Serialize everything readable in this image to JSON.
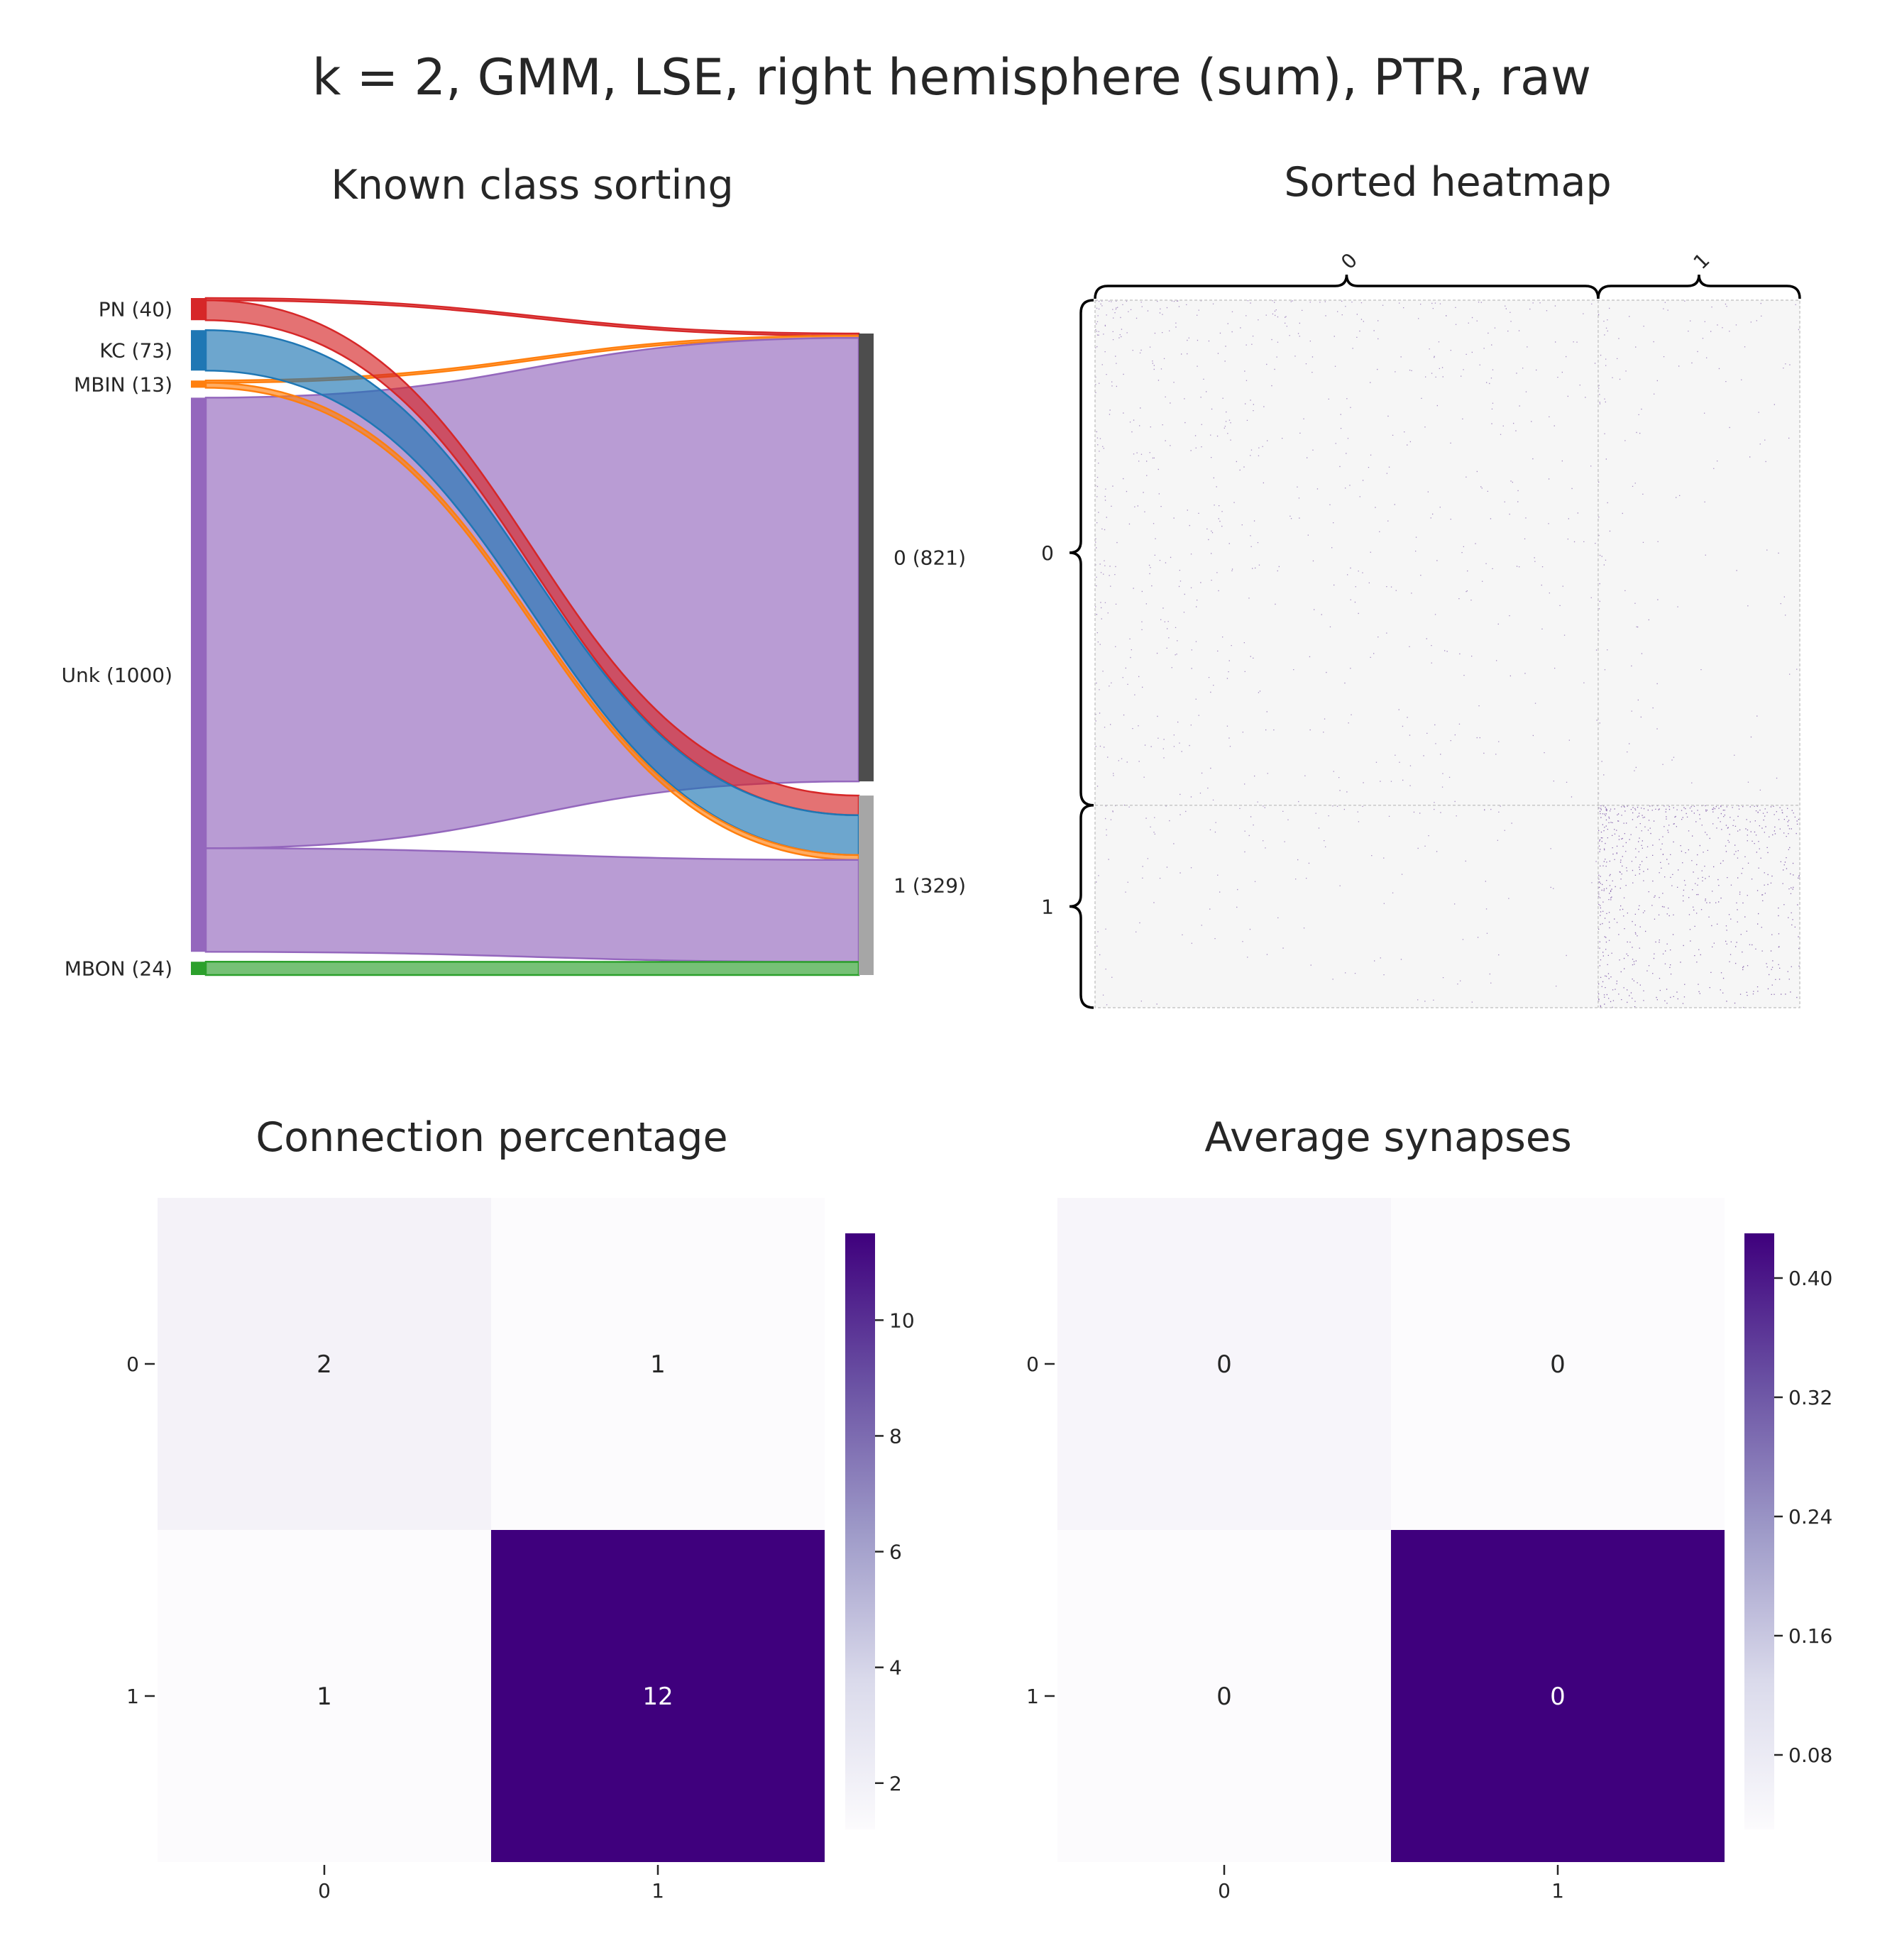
{
  "suptitle": "k = 2, GMM, LSE, right hemisphere (sum), PTR, raw",
  "panels": {
    "sankey_title": "Known class sorting",
    "heatmap_title": "Sorted heatmap",
    "conn_title": "Connection percentage",
    "avg_title": "Average synapses"
  },
  "chart_data": [
    {
      "type": "sankey",
      "title": "Known class sorting",
      "sources": [
        {
          "label": "PN (40)",
          "name": "PN",
          "count": 40,
          "color": "#d62728"
        },
        {
          "label": "KC (73)",
          "name": "KC",
          "count": 73,
          "color": "#1f77b4"
        },
        {
          "label": "MBIN (13)",
          "name": "MBIN",
          "count": 13,
          "color": "#ff7f0e"
        },
        {
          "label": "Unk (1000)",
          "name": "Unk",
          "count": 1000,
          "color": "#9467bd"
        },
        {
          "label": "MBON (24)",
          "name": "MBON",
          "count": 24,
          "color": "#2ca02c"
        }
      ],
      "targets": [
        {
          "label": "0 (821)",
          "name": "0",
          "count": 821,
          "color": "#4d4d4d"
        },
        {
          "label": "1 (329)",
          "name": "1",
          "count": 329,
          "color": "#a6a6a6"
        }
      ],
      "flows": [
        {
          "source": "PN",
          "target": "0",
          "value": 4
        },
        {
          "source": "MBIN",
          "target": "0",
          "value": 4
        },
        {
          "source": "Unk",
          "target": "0",
          "value": 813
        },
        {
          "source": "PN",
          "target": "1",
          "value": 36
        },
        {
          "source": "KC",
          "target": "1",
          "value": 73
        },
        {
          "source": "MBIN",
          "target": "1",
          "value": 9
        },
        {
          "source": "Unk",
          "target": "1",
          "value": 187
        },
        {
          "source": "MBON",
          "target": "1",
          "value": 24
        }
      ]
    },
    {
      "type": "heatmap",
      "title": "Sorted heatmap",
      "row_groups": [
        {
          "label": "0",
          "size": 821
        },
        {
          "label": "1",
          "size": 329
        }
      ],
      "col_groups": [
        {
          "label": "0",
          "size": 821
        },
        {
          "label": "1",
          "size": 329
        }
      ],
      "block_density": [
        [
          0.02,
          0.01
        ],
        [
          0.01,
          0.12
        ]
      ],
      "colormap": "Purples"
    },
    {
      "type": "heatmap",
      "title": "Connection percentage",
      "xticks": [
        "0",
        "1"
      ],
      "yticks": [
        "0",
        "1"
      ],
      "values": [
        [
          2,
          1
        ],
        [
          1,
          12
        ]
      ],
      "cell_labels": [
        [
          "2",
          "1"
        ],
        [
          "1",
          "12"
        ]
      ],
      "colorbar": {
        "min": 1.2,
        "max": 11.5,
        "ticks": [
          2,
          4,
          6,
          8,
          10
        ]
      },
      "colormap": "Purples"
    },
    {
      "type": "heatmap",
      "title": "Average synapses",
      "xticks": [
        "0",
        "1"
      ],
      "yticks": [
        "0",
        "1"
      ],
      "values": [
        [
          0.05,
          0.03
        ],
        [
          0.03,
          0.43
        ]
      ],
      "cell_labels": [
        [
          "0",
          "0"
        ],
        [
          "0",
          "0"
        ]
      ],
      "colorbar": {
        "min": 0.03,
        "max": 0.43,
        "ticks": [
          0.08,
          0.16,
          0.24,
          0.32,
          0.4
        ],
        "tick_labels": [
          "0.08",
          "0.16",
          "0.24",
          "0.32",
          "0.40"
        ]
      },
      "colormap": "Purples"
    }
  ]
}
